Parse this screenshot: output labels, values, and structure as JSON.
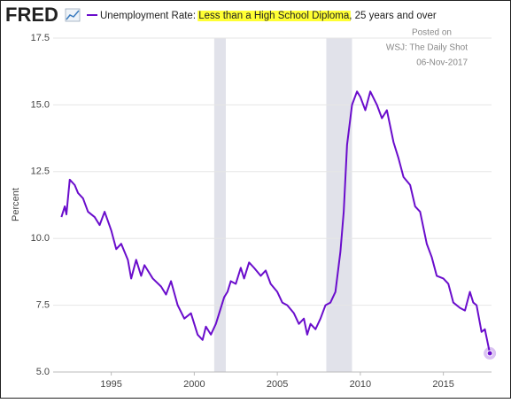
{
  "logo": "FRED",
  "chart_data": {
    "type": "line",
    "ylabel": "Percent",
    "annotations": [
      "Posted on",
      "WSJ: The Daily Shot",
      "06-Nov-2017"
    ],
    "x": [
      1992.0,
      1992.2,
      1992.3,
      1992.5,
      1992.8,
      1993.0,
      1993.3,
      1993.6,
      1994.0,
      1994.3,
      1994.6,
      1995.0,
      1995.3,
      1995.6,
      1996.0,
      1996.2,
      1996.5,
      1996.8,
      1997.0,
      1997.5,
      1998.0,
      1998.3,
      1998.6,
      1999.0,
      1999.4,
      1999.8,
      2000.0,
      2000.2,
      2000.5,
      2000.7,
      2001.0,
      2001.3,
      2001.5,
      2001.8,
      2002.0,
      2002.2,
      2002.5,
      2002.8,
      2003.0,
      2003.3,
      2003.6,
      2004.0,
      2004.3,
      2004.6,
      2005.0,
      2005.3,
      2005.6,
      2006.0,
      2006.3,
      2006.6,
      2006.8,
      2007.0,
      2007.3,
      2007.6,
      2007.9,
      2008.2,
      2008.5,
      2008.8,
      2009.0,
      2009.2,
      2009.5,
      2009.8,
      2010.0,
      2010.3,
      2010.6,
      2011.0,
      2011.3,
      2011.6,
      2012.0,
      2012.3,
      2012.6,
      2013.0,
      2013.3,
      2013.6,
      2014.0,
      2014.3,
      2014.6,
      2015.0,
      2015.3,
      2015.6,
      2016.0,
      2016.3,
      2016.6,
      2016.8,
      2017.0,
      2017.3,
      2017.5,
      2017.8
    ],
    "series": [
      {
        "name": "Unemployment Rate: Less than a High School Diploma, 25 years and over",
        "highlight": "Less than a High School Diploma",
        "color": "#6a0dcc",
        "values": [
          10.8,
          11.2,
          10.9,
          12.2,
          12.0,
          11.7,
          11.5,
          11.0,
          10.8,
          10.5,
          11.0,
          10.3,
          9.6,
          9.8,
          9.2,
          8.5,
          9.2,
          8.6,
          9.0,
          8.5,
          8.2,
          7.9,
          8.4,
          7.5,
          7.0,
          7.2,
          6.8,
          6.4,
          6.2,
          6.7,
          6.4,
          6.8,
          7.2,
          7.8,
          8.0,
          8.4,
          8.3,
          8.9,
          8.5,
          9.1,
          8.9,
          8.6,
          8.8,
          8.3,
          8.0,
          7.6,
          7.5,
          7.2,
          6.8,
          7.0,
          6.4,
          6.8,
          6.6,
          7.0,
          7.5,
          7.6,
          8.0,
          9.5,
          11.0,
          13.5,
          15.0,
          15.5,
          15.3,
          14.8,
          15.5,
          15.0,
          14.5,
          14.8,
          13.6,
          13.0,
          12.3,
          12.0,
          11.2,
          11.0,
          9.8,
          9.3,
          8.6,
          8.5,
          8.3,
          7.6,
          7.4,
          7.3,
          8.0,
          7.6,
          7.5,
          6.5,
          6.6,
          5.7
        ]
      }
    ],
    "shaded_periods": [
      [
        2001.2,
        2001.9
      ],
      [
        2007.95,
        2009.5
      ]
    ],
    "xlim": [
      1991.5,
      2017.9
    ],
    "xticks": [
      1995,
      2000,
      2005,
      2010,
      2015
    ],
    "ylim": [
      5,
      17.5
    ],
    "yticks": [
      {
        "value": 5,
        "label": "5.0"
      },
      7.5,
      {
        "value": 10,
        "label": "10.0"
      },
      12.5,
      {
        "value": 15,
        "label": "15.0"
      },
      17.5
    ],
    "grid": true
  }
}
